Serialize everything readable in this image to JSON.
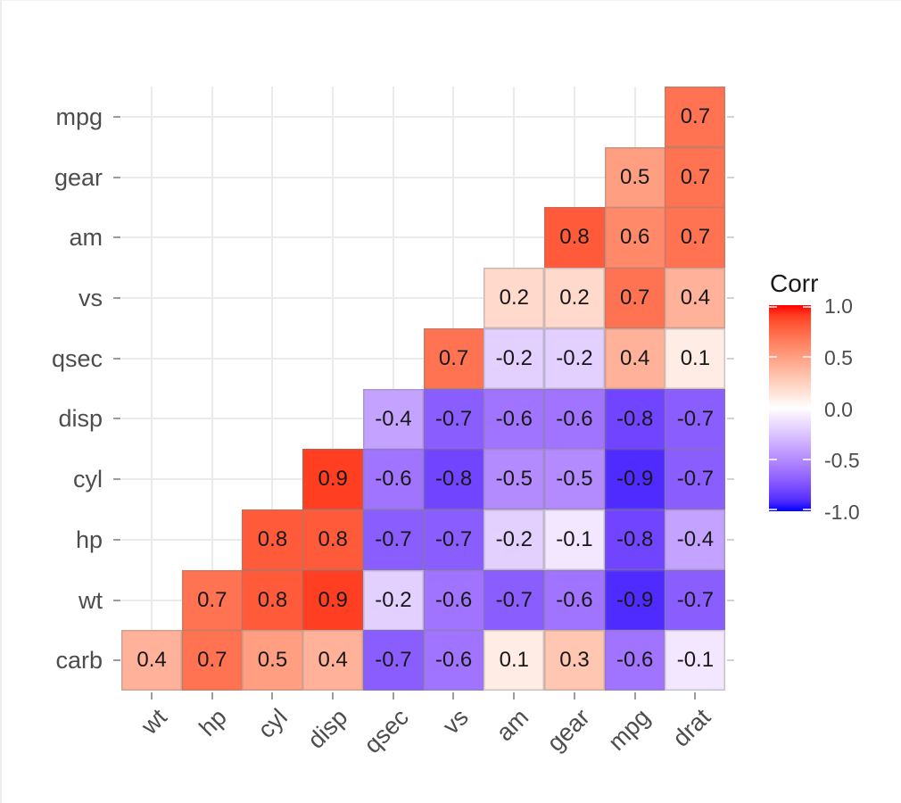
{
  "chart_data": {
    "type": "heatmap",
    "subtype": "correlation-matrix-lower-triangle",
    "dataset_hint": "mtcars correlations",
    "x_categories": [
      "wt",
      "hp",
      "cyl",
      "disp",
      "qsec",
      "vs",
      "am",
      "gear",
      "mpg",
      "drat"
    ],
    "y_categories": [
      "mpg",
      "gear",
      "am",
      "vs",
      "qsec",
      "disp",
      "cyl",
      "hp",
      "wt",
      "carb"
    ],
    "matrix": [
      [
        null,
        null,
        null,
        null,
        null,
        null,
        null,
        null,
        null,
        0.7
      ],
      [
        null,
        null,
        null,
        null,
        null,
        null,
        null,
        null,
        0.5,
        0.7
      ],
      [
        null,
        null,
        null,
        null,
        null,
        null,
        null,
        0.8,
        0.6,
        0.7
      ],
      [
        null,
        null,
        null,
        null,
        null,
        null,
        0.2,
        0.2,
        0.7,
        0.4
      ],
      [
        null,
        null,
        null,
        null,
        null,
        0.7,
        -0.2,
        -0.2,
        0.4,
        0.1
      ],
      [
        null,
        null,
        null,
        null,
        -0.4,
        -0.7,
        -0.6,
        -0.6,
        -0.8,
        -0.7
      ],
      [
        null,
        null,
        null,
        0.9,
        -0.6,
        -0.8,
        -0.5,
        -0.5,
        -0.9,
        -0.7
      ],
      [
        null,
        null,
        0.8,
        0.8,
        -0.7,
        -0.7,
        -0.2,
        -0.1,
        -0.8,
        -0.4
      ],
      [
        null,
        0.7,
        0.8,
        0.9,
        -0.2,
        -0.6,
        -0.7,
        -0.6,
        -0.9,
        -0.7
      ],
      [
        0.4,
        0.7,
        0.5,
        0.4,
        -0.7,
        -0.6,
        0.1,
        0.3,
        -0.6,
        -0.1
      ]
    ],
    "value_format_decimals": 1,
    "legend": {
      "title": "Corr",
      "tick_labels": [
        "1.0",
        "0.5",
        "0.0",
        "-0.5",
        "-1.0"
      ],
      "tick_values": [
        1.0,
        0.5,
        0.0,
        -0.5,
        -1.0
      ],
      "range": [
        -1.0,
        1.0
      ],
      "position": "right"
    },
    "colors": {
      "low": "#0000FF",
      "mid": "#FFFFFF",
      "high": "#FF0000",
      "grid": "#ebebeb",
      "cell_outline": "gray",
      "axis_text": "#4d4d4d",
      "cell_text": "#181818"
    },
    "grid": true,
    "title": "",
    "xlabel": "",
    "ylabel": ""
  }
}
